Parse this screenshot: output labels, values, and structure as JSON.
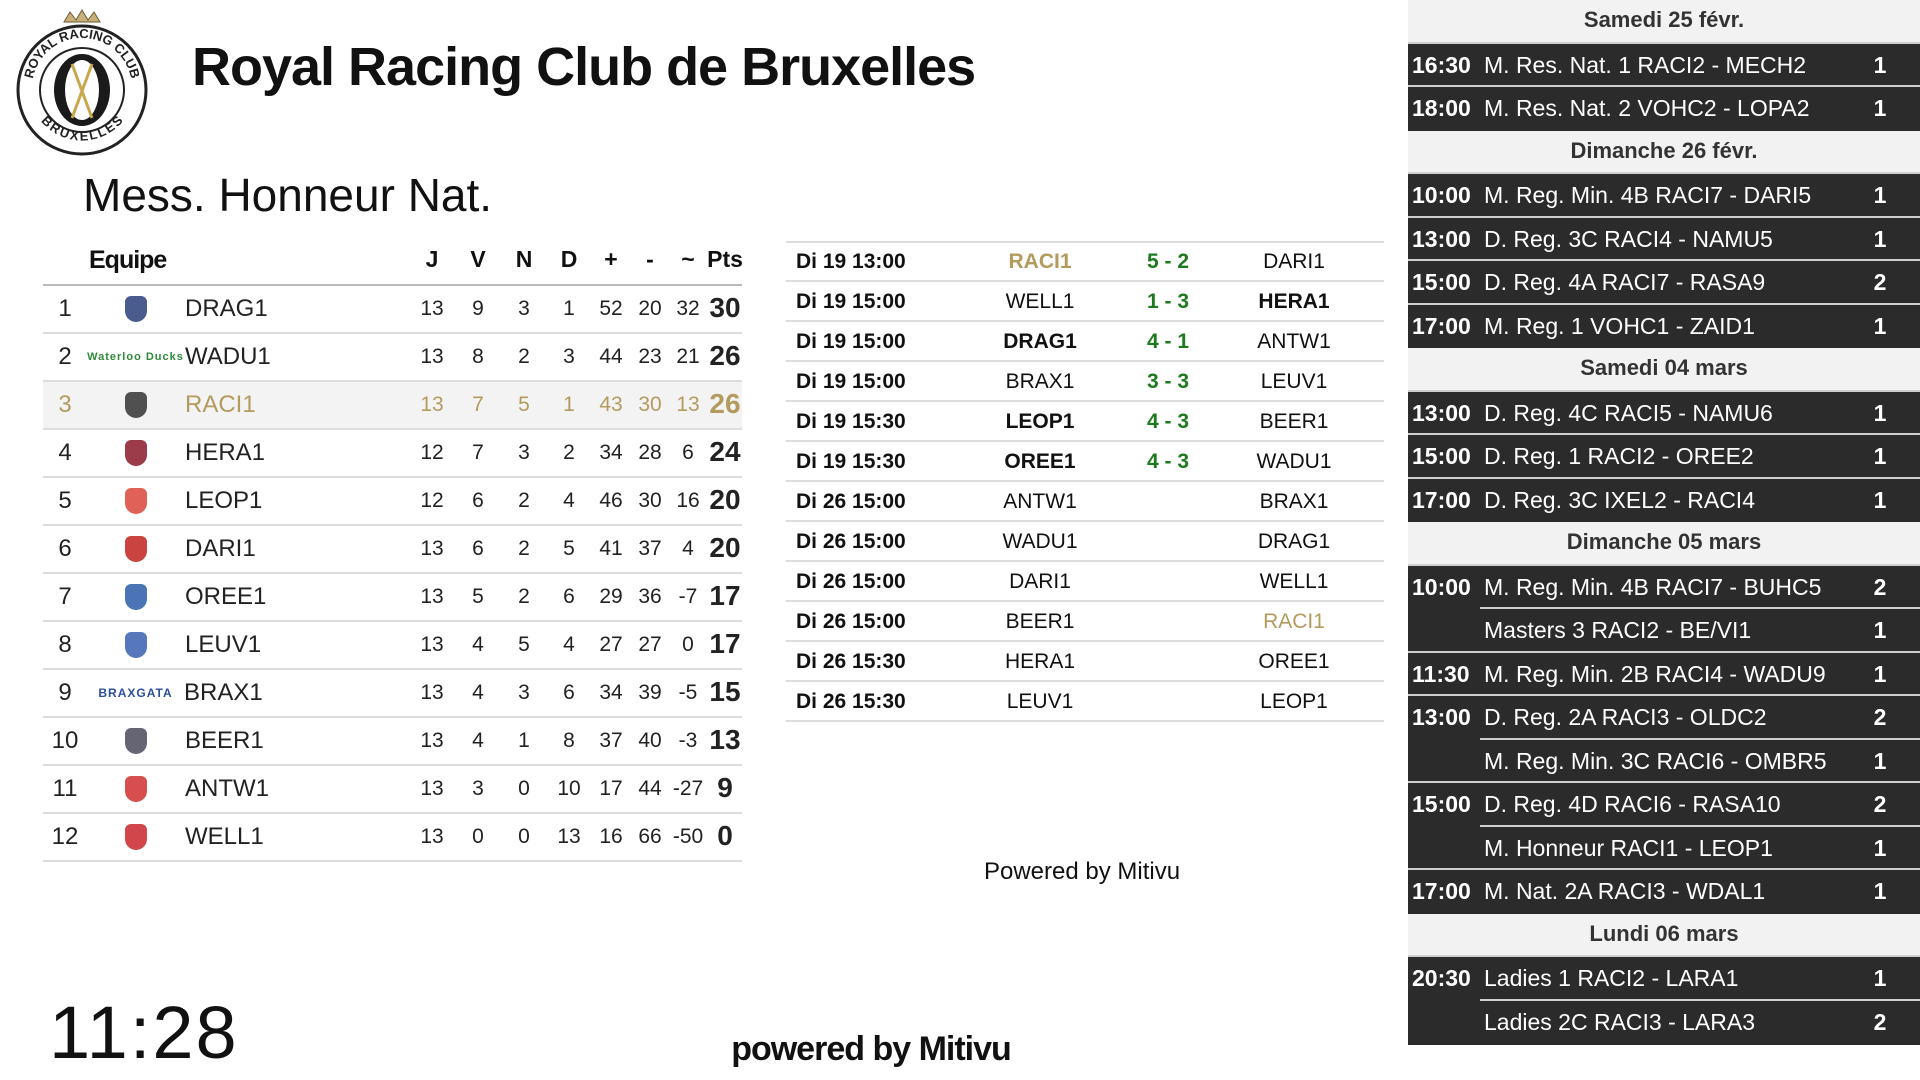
{
  "header": {
    "title": "Royal Racing Club de Bruxelles",
    "logo_top": "ROYAL RACING CLUB",
    "logo_bottom": "BRUXELLES"
  },
  "standings": {
    "title": "Mess. Honneur Nat.",
    "columns": [
      "Equipe",
      "J",
      "V",
      "N",
      "D",
      "+",
      "-",
      "~",
      "Pts"
    ],
    "rows": [
      {
        "rank": 1,
        "team": "DRAG1",
        "logo_color": "#2a3f7a",
        "stats": [
          13,
          9,
          3,
          1,
          52,
          20,
          32,
          30
        ]
      },
      {
        "rank": 2,
        "team": "WADU1",
        "logo_color": "#2e8b3a",
        "logo_text": "Waterloo Ducks",
        "stats": [
          13,
          8,
          2,
          3,
          44,
          23,
          21,
          26
        ]
      },
      {
        "rank": 3,
        "team": "RACI1",
        "logo_color": "#333333",
        "highlight": true,
        "stats": [
          13,
          7,
          5,
          1,
          43,
          30,
          13,
          26
        ]
      },
      {
        "rank": 4,
        "team": "HERA1",
        "logo_color": "#8b1a2b",
        "stats": [
          12,
          7,
          3,
          2,
          34,
          28,
          6,
          24
        ]
      },
      {
        "rank": 5,
        "team": "LEOP1",
        "logo_color": "#d9453a",
        "stats": [
          12,
          6,
          2,
          4,
          46,
          30,
          16,
          20
        ]
      },
      {
        "rank": 6,
        "team": "DARI1",
        "logo_color": "#c0221f",
        "stats": [
          13,
          6,
          2,
          5,
          41,
          37,
          4,
          20
        ]
      },
      {
        "rank": 7,
        "team": "OREE1",
        "logo_color": "#2a5ca8",
        "stats": [
          13,
          5,
          2,
          6,
          29,
          36,
          -7,
          17
        ]
      },
      {
        "rank": 8,
        "team": "LEUV1",
        "logo_color": "#3a5fb0",
        "stats": [
          13,
          4,
          5,
          4,
          27,
          27,
          0,
          17
        ]
      },
      {
        "rank": 9,
        "team": "BRAX1",
        "logo_color": "#2b4f9e",
        "logo_text": "BRAXGATA",
        "stats": [
          13,
          4,
          3,
          6,
          34,
          39,
          -5,
          15
        ]
      },
      {
        "rank": 10,
        "team": "BEER1",
        "logo_color": "#4a4a5a",
        "stats": [
          13,
          4,
          1,
          8,
          37,
          40,
          -3,
          13
        ]
      },
      {
        "rank": 11,
        "team": "ANTW1",
        "logo_color": "#d02f2f",
        "stats": [
          13,
          3,
          0,
          10,
          17,
          44,
          -27,
          9
        ]
      },
      {
        "rank": 12,
        "team": "WELL1",
        "logo_color": "#c8262b",
        "stats": [
          13,
          0,
          0,
          13,
          16,
          66,
          -50,
          0
        ]
      }
    ]
  },
  "results": {
    "matches": [
      {
        "when": "Di 19 13:00",
        "home": "RACI1",
        "score": "5 - 2",
        "away": "DARI1",
        "winner": "home",
        "highlight": "home"
      },
      {
        "when": "Di 19 15:00",
        "home": "WELL1",
        "score": "1 - 3",
        "away": "HERA1",
        "winner": "away"
      },
      {
        "when": "Di 19 15:00",
        "home": "DRAG1",
        "score": "4 - 1",
        "away": "ANTW1",
        "winner": "home"
      },
      {
        "when": "Di 19 15:00",
        "home": "BRAX1",
        "score": "3 - 3",
        "away": "LEUV1"
      },
      {
        "when": "Di 19 15:30",
        "home": "LEOP1",
        "score": "4 - 3",
        "away": "BEER1",
        "winner": "home"
      },
      {
        "when": "Di 19 15:30",
        "home": "OREE1",
        "score": "4 - 3",
        "away": "WADU1",
        "winner": "home"
      },
      {
        "when": "Di 26 15:00",
        "home": "ANTW1",
        "away": "BRAX1"
      },
      {
        "when": "Di 26 15:00",
        "home": "WADU1",
        "away": "DRAG1"
      },
      {
        "when": "Di 26 15:00",
        "home": "DARI1",
        "away": "WELL1"
      },
      {
        "when": "Di 26 15:00",
        "home": "BEER1",
        "away": "RACI1",
        "highlight": "away"
      },
      {
        "when": "Di 26 15:30",
        "home": "HERA1",
        "away": "OREE1"
      },
      {
        "when": "Di 26 15:30",
        "home": "LEUV1",
        "away": "LEOP1"
      }
    ],
    "powered": "Powered by Mitivu"
  },
  "schedule": [
    {
      "day": "Samedi 25 févr.",
      "matches": [
        {
          "time": "16:30",
          "desc": "M. Res. Nat. 1 RACI2 - MECH2",
          "count": 1
        },
        {
          "time": "18:00",
          "desc": "M. Res. Nat. 2 VOHC2 - LOPA2",
          "count": 1
        }
      ]
    },
    {
      "day": "Dimanche 26 févr.",
      "matches": [
        {
          "time": "10:00",
          "desc": "M. Reg. Min. 4B RACI7 - DARI5",
          "count": 1
        },
        {
          "time": "13:00",
          "desc": "D. Reg. 3C RACI4 - NAMU5",
          "count": 1
        },
        {
          "time": "15:00",
          "desc": "D. Reg. 4A RACI7 - RASA9",
          "count": 2
        },
        {
          "time": "17:00",
          "desc": "M. Reg. 1 VOHC1 - ZAID1",
          "count": 1
        }
      ]
    },
    {
      "day": "Samedi 04 mars",
      "matches": [
        {
          "time": "13:00",
          "desc": "D. Reg. 4C RACI5 - NAMU6",
          "count": 1
        },
        {
          "time": "15:00",
          "desc": "D. Reg. 1 RACI2 - OREE2",
          "count": 1
        },
        {
          "time": "17:00",
          "desc": "D. Reg. 3C IXEL2 - RACI4",
          "count": 1
        }
      ]
    },
    {
      "day": "Dimanche 05 mars",
      "matches": [
        {
          "time": "10:00",
          "desc": "M. Reg. Min. 4B RACI7 - BUHC5",
          "count": 2
        },
        {
          "time": null,
          "desc": "Masters 3 RACI2 - BE/VI1",
          "count": 1
        },
        {
          "time": "11:30",
          "desc": "M. Reg. Min. 2B RACI4 - WADU9",
          "count": 1
        },
        {
          "time": "13:00",
          "desc": "D. Reg. 2A RACI3 - OLDC2",
          "count": 2
        },
        {
          "time": null,
          "desc": "M. Reg. Min. 3C RACI6 - OMBR5",
          "count": 1
        },
        {
          "time": "15:00",
          "desc": "D. Reg. 4D RACI6 - RASA10",
          "count": 2
        },
        {
          "time": null,
          "desc": "M. Honneur RACI1 - LEOP1",
          "count": 1
        },
        {
          "time": "17:00",
          "desc": "M. Nat. 2A RACI3 - WDAL1",
          "count": 1
        }
      ]
    },
    {
      "day": "Lundi 06 mars",
      "matches": [
        {
          "time": "20:30",
          "desc": "Ladies 1 RACI2 - LARA1",
          "count": 1
        },
        {
          "time": null,
          "desc": "Ladies 2C RACI3 - LARA3",
          "count": 2
        }
      ]
    }
  ],
  "clock": "11:28",
  "footer": "powered by Mitivu"
}
